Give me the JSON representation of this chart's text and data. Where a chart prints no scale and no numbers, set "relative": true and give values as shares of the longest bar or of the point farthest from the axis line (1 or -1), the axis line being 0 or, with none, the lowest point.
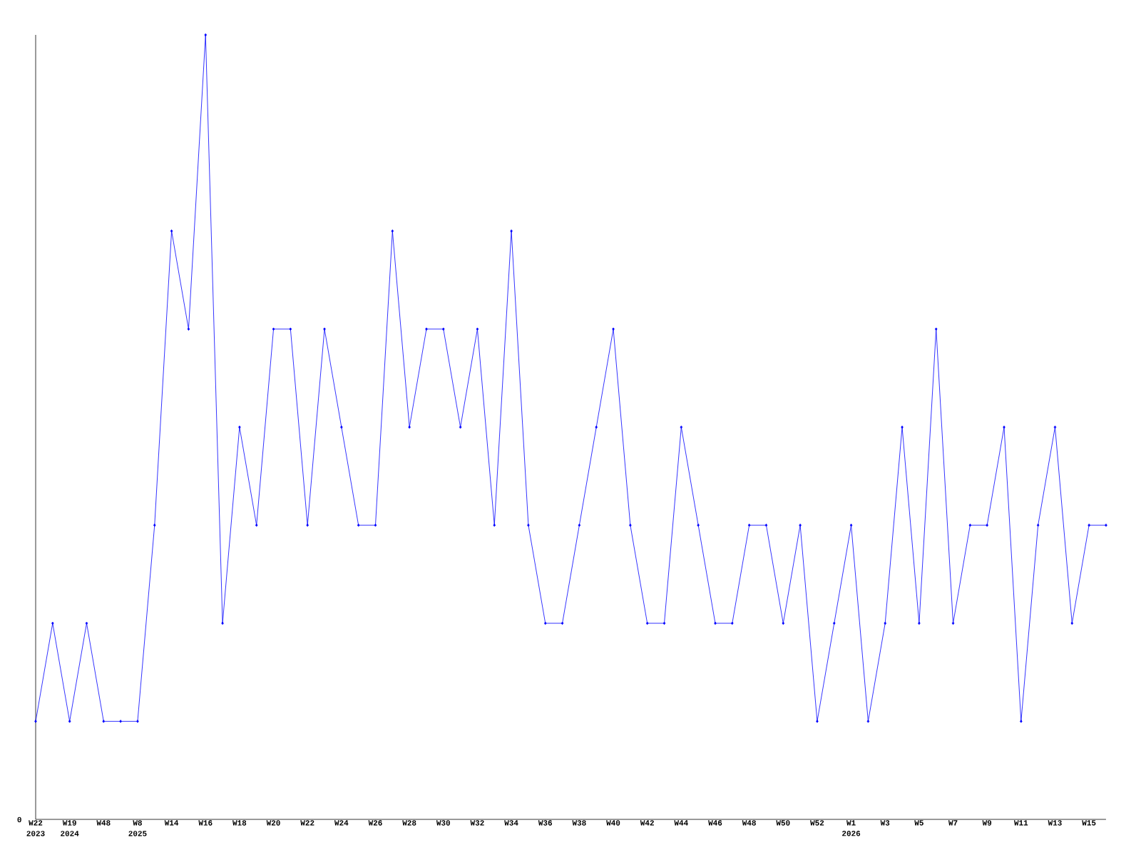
{
  "chart_data": {
    "type": "line",
    "relative": true,
    "color": "#0000ff",
    "marker": "diamond",
    "categories": [
      "W22 2023",
      null,
      "W19 2024",
      null,
      "W48",
      null,
      "W8 2025",
      null,
      "W14",
      null,
      "W16",
      null,
      "W18",
      null,
      "W20",
      null,
      "W22",
      null,
      "W24",
      null,
      "W26",
      null,
      "W28",
      null,
      "W30",
      null,
      "W32",
      null,
      "W34",
      null,
      "W36",
      null,
      "W38",
      null,
      "W40",
      null,
      "W42",
      null,
      "W44",
      null,
      "W46",
      null,
      "W48",
      null,
      "W50",
      null,
      "W52",
      null,
      "W1 2026",
      null,
      "W3",
      null,
      "W5",
      null,
      "W7",
      null,
      "W9",
      null,
      "W11",
      null,
      "W13",
      null,
      "W15",
      null
    ],
    "values": [
      0.125,
      0.25,
      0.125,
      0.25,
      0.125,
      0.125,
      0.125,
      0.375,
      0.75,
      0.625,
      1,
      0.25,
      0.5,
      0.375,
      0.625,
      0.625,
      0.375,
      0.625,
      0.5,
      0.375,
      0.375,
      0.75,
      0.5,
      0.625,
      0.625,
      0.5,
      0.625,
      0.375,
      0.75,
      0.375,
      0.25,
      0.25,
      0.375,
      0.5,
      0.625,
      0.375,
      0.25,
      0.25,
      0.5,
      0.375,
      0.25,
      0.25,
      0.375,
      0.375,
      0.25,
      0.375,
      0.125,
      0.25,
      0.375,
      0.125,
      0.25,
      0.5,
      0.25,
      0.625,
      0.25,
      0.375,
      0.375,
      0.5,
      0.125,
      0.375,
      0.5,
      0.25,
      0.375,
      0.375
    ],
    "annotations": [
      "0"
    ]
  }
}
